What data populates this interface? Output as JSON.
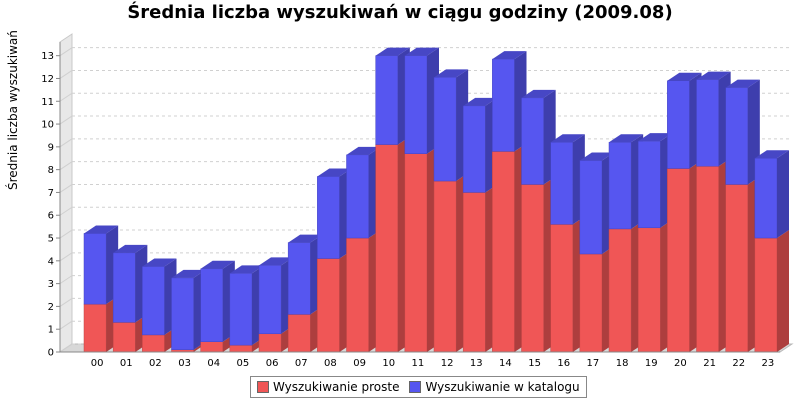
{
  "chart_data": {
    "type": "bar",
    "stacked": true,
    "three_d": true,
    "title": "Średnia liczba wyszukiwań w ciągu godziny (2009.08)",
    "ylabel": "Średnia liczba wyszukiwań",
    "xlabel": "",
    "ylim": [
      0,
      13.6
    ],
    "yticks": [
      0,
      1,
      2,
      3,
      4,
      5,
      6,
      7,
      8,
      9,
      10,
      11,
      12,
      13
    ],
    "grid": true,
    "legend_position": "bottom",
    "categories": [
      "00",
      "01",
      "02",
      "03",
      "04",
      "05",
      "06",
      "07",
      "08",
      "09",
      "10",
      "11",
      "12",
      "13",
      "14",
      "15",
      "16",
      "17",
      "18",
      "19",
      "20",
      "21",
      "22",
      "23"
    ],
    "series": [
      {
        "name": "Wyszukiwanie proste",
        "color": "#f05656",
        "values": [
          2.1,
          1.3,
          0.75,
          0.1,
          0.45,
          0.3,
          0.8,
          1.65,
          4.1,
          5.0,
          9.1,
          8.7,
          7.5,
          7.0,
          8.8,
          7.35,
          5.6,
          4.3,
          5.4,
          5.45,
          8.05,
          8.15,
          7.35,
          5.0
        ]
      },
      {
        "name": "Wyszukiwanie w katalogu",
        "color": "#5656f0",
        "values": [
          3.1,
          3.05,
          3.0,
          3.15,
          3.2,
          3.15,
          3.0,
          3.15,
          3.6,
          3.65,
          3.9,
          4.3,
          4.55,
          3.8,
          4.05,
          3.8,
          3.6,
          4.1,
          3.8,
          3.8,
          3.85,
          3.8,
          4.25,
          3.5
        ]
      }
    ]
  }
}
